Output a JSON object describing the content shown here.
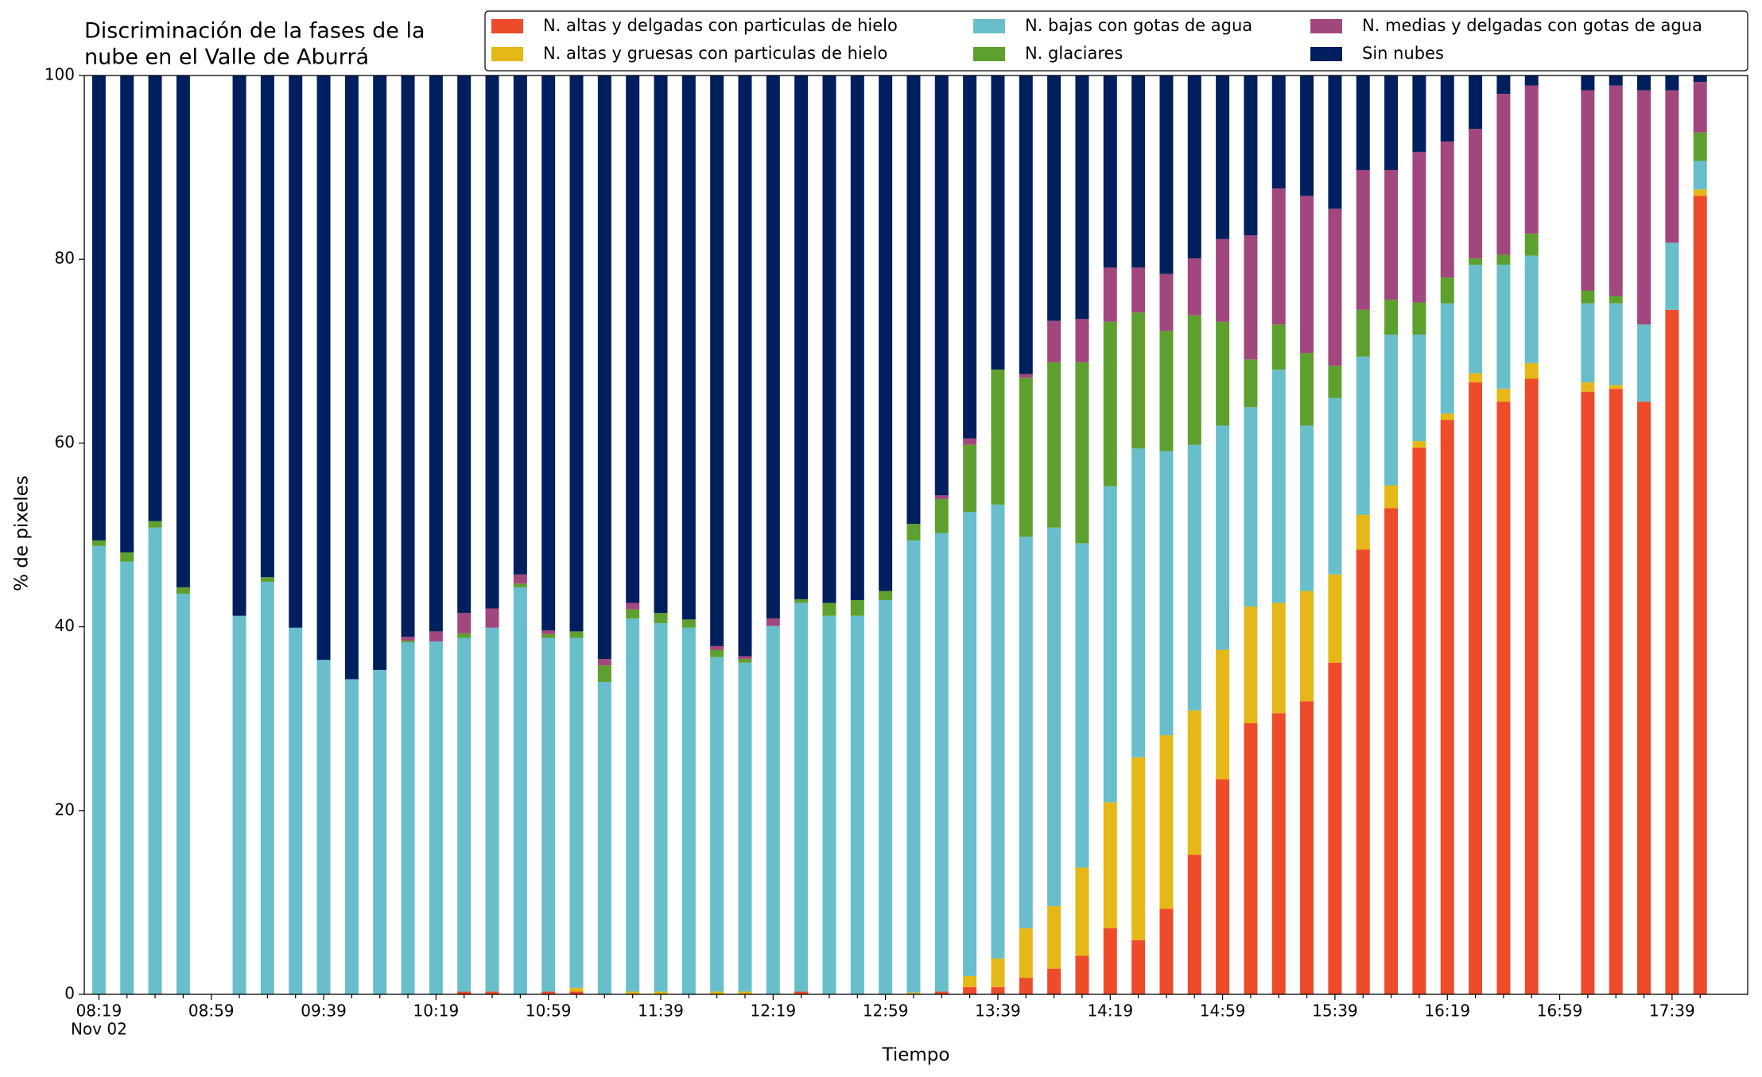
{
  "chart_data": {
    "type": "stacked_bar",
    "title": [
      "Discriminación de la fases de la",
      "nube en el Valle de Aburrá"
    ],
    "x_label": "Tiempo",
    "y_label": "% de pixeles",
    "date_label": "Nov 02",
    "categories": [
      "08:19",
      null,
      null,
      null,
      "08:59",
      null,
      null,
      null,
      "09:39",
      null,
      null,
      null,
      "10:19",
      null,
      null,
      null,
      "10:59",
      null,
      null,
      null,
      "11:39",
      null,
      null,
      null,
      "12:19",
      null,
      null,
      null,
      "12:59",
      null,
      null,
      null,
      "13:39",
      null,
      null,
      null,
      "14:19",
      null,
      null,
      null,
      "14:59",
      null,
      null,
      null,
      "15:39",
      null,
      null,
      null,
      "16:19",
      null,
      null,
      null,
      "16:59",
      null,
      null,
      null,
      "17:39",
      null
    ],
    "ylim": [
      0,
      100
    ],
    "yticks": [
      0,
      20,
      40,
      60,
      80,
      100
    ],
    "series": [
      {
        "name": "N. altas y delgadas con particulas de hielo",
        "color": "#ee4b2b",
        "values": [
          0,
          0,
          0,
          0,
          null,
          0,
          0,
          0,
          0,
          0,
          0,
          0,
          0,
          0.3,
          0.3,
          0,
          0.3,
          0.3,
          0,
          0,
          0,
          0,
          0,
          0,
          0,
          0.3,
          0,
          0,
          0,
          0,
          0.3,
          0.8,
          0.8,
          1.8,
          2.8,
          4.2,
          7.2,
          5.9,
          9.3,
          15.2,
          23.4,
          29.5,
          30.6,
          31.9,
          36.1,
          48.4,
          52.9,
          59.5,
          62.5,
          66.6,
          64.5,
          67.0,
          null,
          65.6,
          65.9,
          64.5,
          74.5,
          86.9
        ]
      },
      {
        "name": "N. altas y gruesas con particulas de hielo",
        "color": "#e6b817",
        "values": [
          0,
          0,
          0,
          0,
          null,
          0,
          0,
          0,
          0,
          0,
          0,
          0,
          0,
          0,
          0,
          0,
          0,
          0.4,
          0,
          0.3,
          0.3,
          0,
          0.3,
          0.3,
          0,
          0,
          0,
          0,
          0,
          0.2,
          0,
          1.2,
          3.1,
          5.4,
          6.8,
          9.6,
          13.7,
          19.9,
          18.9,
          15.7,
          14.1,
          12.7,
          12.0,
          12.0,
          9.6,
          3.8,
          2.5,
          0.7,
          0.7,
          1.0,
          1.4,
          1.7,
          null,
          1.0,
          0.4,
          0,
          0,
          0.7
        ]
      },
      {
        "name": "N. bajas con gotas de agua",
        "color": "#68bfcb",
        "values": [
          48.8,
          47.1,
          50.8,
          43.6,
          null,
          41.2,
          44.9,
          39.9,
          36.4,
          34.3,
          35.3,
          38.3,
          38.4,
          38.5,
          39.6,
          44.3,
          38.5,
          38.1,
          34.0,
          40.6,
          40.1,
          39.9,
          36.4,
          35.8,
          40.1,
          42.3,
          41.2,
          41.2,
          42.9,
          49.2,
          49.9,
          50.5,
          49.4,
          42.6,
          41.2,
          35.3,
          34.4,
          33.6,
          30.9,
          28.9,
          24.4,
          21.7,
          25.4,
          18.0,
          19.2,
          17.2,
          16.4,
          11.6,
          12.0,
          11.8,
          13.5,
          11.7,
          null,
          8.6,
          8.9,
          8.4,
          7.3,
          3.1
        ]
      },
      {
        "name": "N. glaciares",
        "color": "#5da02e",
        "values": [
          0.6,
          1.0,
          0.7,
          0.7,
          null,
          0,
          0.5,
          0,
          0,
          0,
          0,
          0.2,
          0,
          0.5,
          0,
          0.4,
          0.4,
          0.7,
          1.8,
          1.0,
          1.1,
          0.9,
          0.8,
          0.4,
          0,
          0.4,
          1.4,
          1.7,
          1.0,
          1.8,
          3.7,
          7.3,
          14.7,
          17.3,
          18.0,
          19.7,
          17.9,
          14.8,
          13.1,
          14.1,
          11.3,
          5.2,
          4.9,
          7.9,
          3.5,
          5.1,
          3.8,
          3.5,
          2.8,
          0.7,
          1.1,
          2.4,
          null,
          1.4,
          0.8,
          0,
          0,
          3.1
        ]
      },
      {
        "name": "N. medias y delgadas con gotas de agua",
        "color": "#a2477d",
        "values": [
          0,
          0,
          0,
          0,
          null,
          0,
          0,
          0,
          0,
          0,
          0,
          0.4,
          1.1,
          2.2,
          2.1,
          1.0,
          0.4,
          0,
          0.7,
          0.7,
          0,
          0,
          0.4,
          0.3,
          0.8,
          0,
          0,
          0,
          0,
          0,
          0.4,
          0.7,
          0,
          0.4,
          4.5,
          4.7,
          5.9,
          4.9,
          6.2,
          6.2,
          9.0,
          13.5,
          14.8,
          17.1,
          17.1,
          15.2,
          14.1,
          16.4,
          14.8,
          14.1,
          17.5,
          16.1,
          null,
          21.8,
          22.9,
          25.5,
          16.6,
          5.5
        ]
      },
      {
        "name": "Sin nubes",
        "color": "#001f5f",
        "values": [
          50.6,
          51.9,
          48.5,
          55.7,
          null,
          58.8,
          54.6,
          60.1,
          63.6,
          65.7,
          64.7,
          61.1,
          60.5,
          58.5,
          58.0,
          54.3,
          60.4,
          60.5,
          63.5,
          57.4,
          58.5,
          59.2,
          62.1,
          63.2,
          59.1,
          57.0,
          57.4,
          57.1,
          56.1,
          48.8,
          45.7,
          39.5,
          32.0,
          32.5,
          26.7,
          26.5,
          20.9,
          20.9,
          21.6,
          19.9,
          17.8,
          17.4,
          12.3,
          13.1,
          14.5,
          10.3,
          10.3,
          8.3,
          7.2,
          5.8,
          2.0,
          1.1,
          null,
          1.6,
          1.1,
          1.6,
          1.6,
          0.7
        ]
      }
    ],
    "legend": "top-right"
  }
}
